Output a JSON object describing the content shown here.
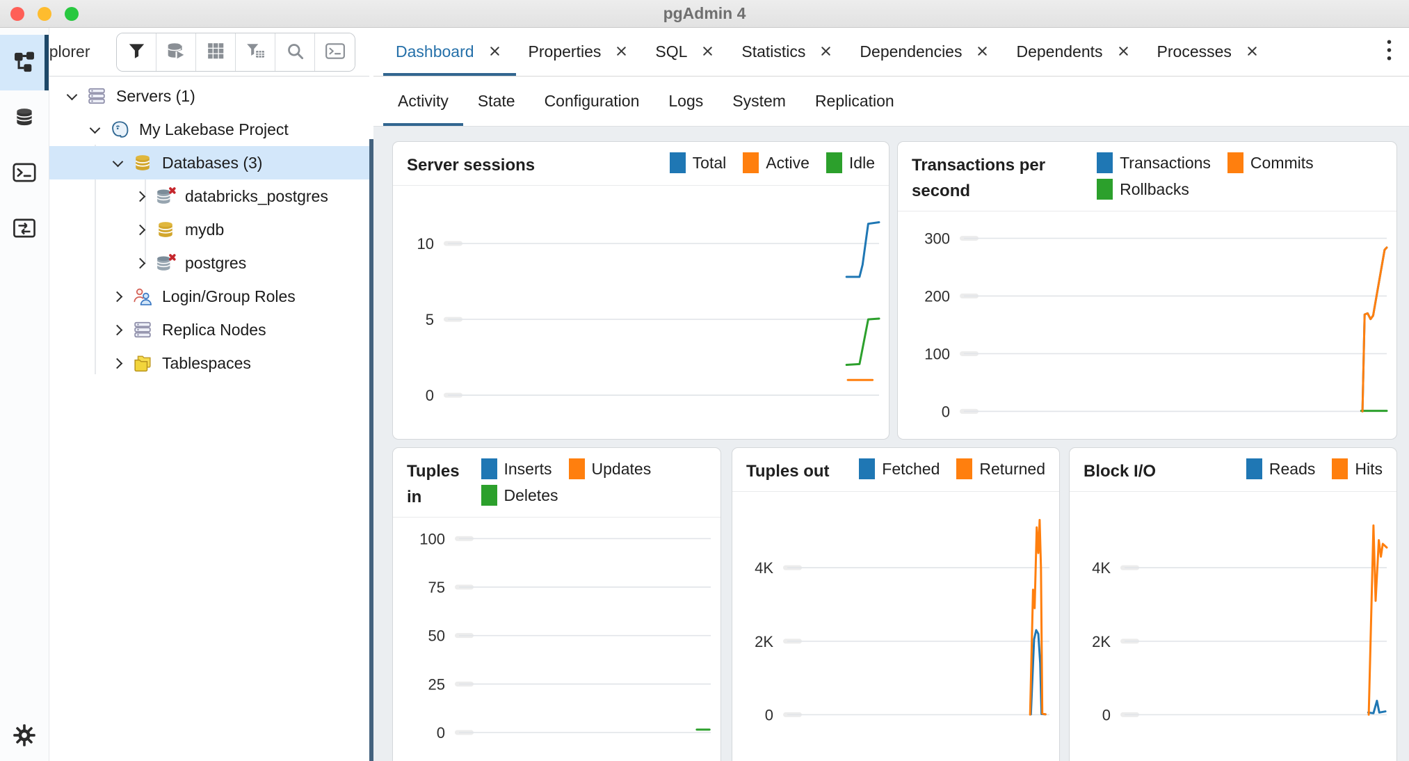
{
  "window": {
    "title": "pgAdmin 4"
  },
  "explorer": {
    "title": "Object Explorer"
  },
  "tabs": [
    {
      "label": "Dashboard",
      "active": true
    },
    {
      "label": "Properties",
      "active": false
    },
    {
      "label": "SQL",
      "active": false
    },
    {
      "label": "Statistics",
      "active": false
    },
    {
      "label": "Dependencies",
      "active": false
    },
    {
      "label": "Dependents",
      "active": false
    },
    {
      "label": "Processes",
      "active": false
    }
  ],
  "subtabs": [
    {
      "label": "Activity",
      "active": true
    },
    {
      "label": "State",
      "active": false
    },
    {
      "label": "Configuration",
      "active": false
    },
    {
      "label": "Logs",
      "active": false
    },
    {
      "label": "System",
      "active": false
    },
    {
      "label": "Replication",
      "active": false
    }
  ],
  "tree": [
    {
      "label": "Servers (1)",
      "level": 0,
      "expanded": true,
      "icon": "server-stack",
      "selected": false
    },
    {
      "label": "My Lakebase Project",
      "level": 1,
      "expanded": true,
      "icon": "postgres-elephant",
      "selected": false
    },
    {
      "label": "Databases (3)",
      "level": 2,
      "expanded": true,
      "icon": "database-gold",
      "selected": true
    },
    {
      "label": "databricks_postgres",
      "level": 3,
      "expanded": false,
      "icon": "database-x",
      "selected": false
    },
    {
      "label": "mydb",
      "level": 3,
      "expanded": false,
      "icon": "database-gold",
      "selected": false
    },
    {
      "label": "postgres",
      "level": 3,
      "expanded": false,
      "icon": "database-x",
      "selected": false
    },
    {
      "label": "Login/Group Roles",
      "level": 2,
      "expanded": false,
      "icon": "roles",
      "selected": false
    },
    {
      "label": "Replica Nodes",
      "level": 2,
      "expanded": false,
      "icon": "server-stack",
      "selected": false
    },
    {
      "label": "Tablespaces",
      "level": 2,
      "expanded": false,
      "icon": "folders",
      "selected": false
    }
  ],
  "colors": {
    "blue": "#1f77b4",
    "orange": "#ff7f0e",
    "green": "#2ca02c",
    "accent": "#326690",
    "tab_active": "#2570a9",
    "selection": "#d3e7fa"
  },
  "chart_data": [
    {
      "id": "server_sessions",
      "type": "line",
      "title": "Server sessions",
      "legend": [
        {
          "label": "Total",
          "color": "#1f77b4"
        },
        {
          "label": "Active",
          "color": "#ff7f0e"
        },
        {
          "label": "Idle",
          "color": "#2ca02c"
        }
      ],
      "yticks": [
        {
          "label": "10",
          "value": 10
        },
        {
          "label": "5",
          "value": 5
        },
        {
          "label": "0",
          "value": 0
        }
      ],
      "ylim": [
        -1.6,
        12.8
      ],
      "pad": [
        22,
        28
      ],
      "series": [
        {
          "name": "Total",
          "color": "#1f77b4",
          "points": [
            [
              0.925,
              7.8
            ],
            [
              0.955,
              7.8
            ],
            [
              0.962,
              8.6
            ],
            [
              0.975,
              11.3
            ],
            [
              1,
              11.4
            ]
          ]
        },
        {
          "name": "Active",
          "color": "#ff7f0e",
          "points": [
            [
              0.928,
              1
            ],
            [
              0.985,
              1
            ]
          ]
        },
        {
          "name": "Idle",
          "color": "#2ca02c",
          "points": [
            [
              0.925,
              2
            ],
            [
              0.955,
              2.05
            ],
            [
              0.975,
              5
            ],
            [
              1,
              5.05
            ]
          ]
        }
      ]
    },
    {
      "id": "tps",
      "type": "line",
      "title": "Transactions per second",
      "legend": [
        {
          "label": "Transactions",
          "color": "#1f77b4"
        },
        {
          "label": "Commits",
          "color": "#ff7f0e"
        },
        {
          "label": "Rollbacks",
          "color": "#2ca02c"
        }
      ],
      "yticks": [
        {
          "label": "300",
          "value": 300
        },
        {
          "label": "200",
          "value": 200
        },
        {
          "label": "100",
          "value": 100
        },
        {
          "label": "0",
          "value": 0
        }
      ],
      "ylim": [
        -14,
        320
      ],
      "pad": [
        22,
        28
      ],
      "series": [
        {
          "name": "Transactions",
          "color": "#1f77b4",
          "points": [
            [
              0.943,
              0
            ],
            [
              0.948,
              168
            ],
            [
              0.955,
              170
            ],
            [
              0.962,
              160
            ],
            [
              0.968,
              166
            ],
            [
              0.995,
              280
            ],
            [
              1,
              284
            ]
          ]
        },
        {
          "name": "Rollbacks",
          "color": "#2ca02c",
          "points": [
            [
              0.94,
              1
            ],
            [
              1,
              1
            ]
          ]
        },
        {
          "name": "Commits",
          "color": "#ff7f0e",
          "points": [
            [
              0.943,
              0
            ],
            [
              0.948,
              168
            ],
            [
              0.955,
              170
            ],
            [
              0.962,
              160
            ],
            [
              0.968,
              166
            ],
            [
              0.995,
              280
            ],
            [
              1,
              284
            ]
          ]
        }
      ]
    },
    {
      "id": "tuples_in",
      "type": "line",
      "title": "Tuples in",
      "legend": [
        {
          "label": "Inserts",
          "color": "#1f77b4"
        },
        {
          "label": "Updates",
          "color": "#ff7f0e"
        },
        {
          "label": "Deletes",
          "color": "#2ca02c"
        }
      ],
      "yticks": [
        {
          "label": "100",
          "value": 100
        },
        {
          "label": "75",
          "value": 75
        },
        {
          "label": "50",
          "value": 50
        },
        {
          "label": "25",
          "value": 25
        },
        {
          "label": "0",
          "value": 0
        }
      ],
      "ylim": [
        -5,
        108
      ],
      "pad": [
        8,
        51
      ],
      "series": [
        {
          "name": "Inserts",
          "color": "#1f77b4",
          "points": []
        },
        {
          "name": "Updates",
          "color": "#ff7f0e",
          "points": []
        },
        {
          "name": "Deletes",
          "color": "#2ca02c",
          "points": [
            [
              0.945,
              1.5
            ],
            [
              0.995,
              1.5
            ]
          ]
        }
      ]
    },
    {
      "id": "tuples_out",
      "type": "line",
      "title": "Tuples out",
      "legend": [
        {
          "label": "Fetched",
          "color": "#1f77b4"
        },
        {
          "label": "Returned",
          "color": "#ff7f0e"
        }
      ],
      "yticks": [
        {
          "label": "4K",
          "value": 4000
        },
        {
          "label": "2K",
          "value": 2000
        },
        {
          "label": "0",
          "value": 0
        }
      ],
      "ylim": [
        -200,
        5650
      ],
      "pad": [
        22,
        80
      ],
      "series": [
        {
          "name": "Fetched",
          "color": "#1f77b4",
          "points": [
            [
              0.93,
              10
            ],
            [
              0.942,
              2050
            ],
            [
              0.95,
              2300
            ],
            [
              0.958,
              2200
            ],
            [
              0.965,
              1400
            ],
            [
              0.97,
              20
            ],
            [
              0.985,
              10
            ]
          ]
        },
        {
          "name": "Returned",
          "color": "#ff7f0e",
          "points": [
            [
              0.927,
              5
            ],
            [
              0.938,
              3400
            ],
            [
              0.944,
              2900
            ],
            [
              0.952,
              5100
            ],
            [
              0.958,
              4400
            ],
            [
              0.963,
              5300
            ],
            [
              0.968,
              4000
            ],
            [
              0.973,
              30
            ],
            [
              0.985,
              10
            ]
          ]
        }
      ]
    },
    {
      "id": "block_io",
      "type": "line",
      "title": "Block I/O",
      "legend": [
        {
          "label": "Reads",
          "color": "#1f77b4"
        },
        {
          "label": "Hits",
          "color": "#ff7f0e"
        }
      ],
      "yticks": [
        {
          "label": "4K",
          "value": 4000
        },
        {
          "label": "2K",
          "value": 2000
        },
        {
          "label": "0",
          "value": 0
        }
      ],
      "ylim": [
        -200,
        5650
      ],
      "pad": [
        22,
        80
      ],
      "series": [
        {
          "name": "Reads",
          "color": "#1f77b4",
          "points": [
            [
              0.93,
              60
            ],
            [
              0.95,
              40
            ],
            [
              0.963,
              380
            ],
            [
              0.972,
              60
            ],
            [
              0.995,
              90
            ]
          ]
        },
        {
          "name": "Hits",
          "color": "#ff7f0e",
          "points": [
            [
              0.932,
              0
            ],
            [
              0.95,
              5150
            ],
            [
              0.958,
              3100
            ],
            [
              0.97,
              4750
            ],
            [
              0.978,
              4300
            ],
            [
              0.985,
              4650
            ],
            [
              1,
              4550
            ]
          ]
        }
      ]
    }
  ]
}
